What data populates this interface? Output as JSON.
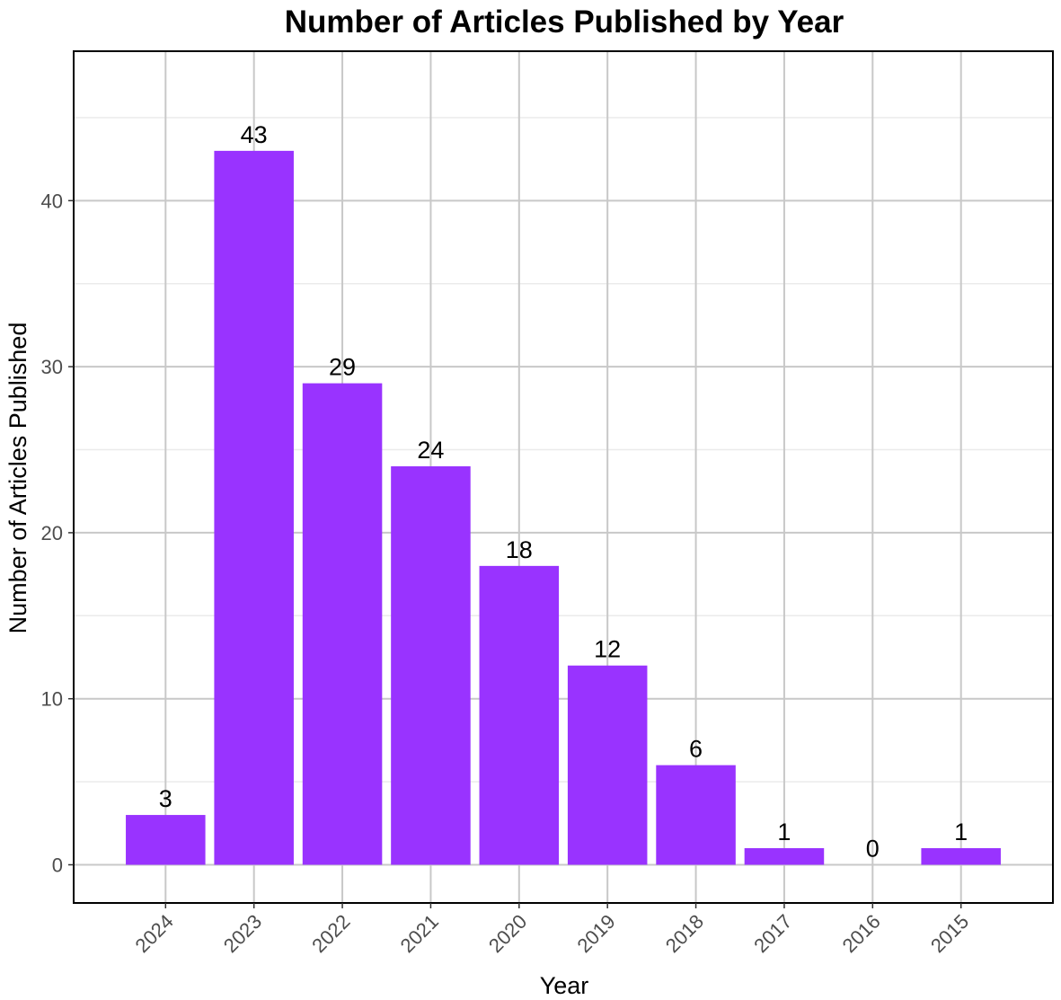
{
  "chart_data": {
    "type": "bar",
    "title": "Number of Articles Published by Year",
    "xlabel": "Year",
    "ylabel": "Number of Articles Published",
    "categories": [
      "2024",
      "2023",
      "2022",
      "2021",
      "2020",
      "2019",
      "2018",
      "2017",
      "2016",
      "2015"
    ],
    "values": [
      3,
      43,
      29,
      24,
      18,
      12,
      6,
      1,
      0,
      1
    ],
    "ylim": [
      -2.3,
      49
    ],
    "yticks": [
      0,
      10,
      20,
      30,
      40
    ],
    "grid": true,
    "legend": "none",
    "bar_color": "#9933ff",
    "x_tick_rotation": 45
  }
}
